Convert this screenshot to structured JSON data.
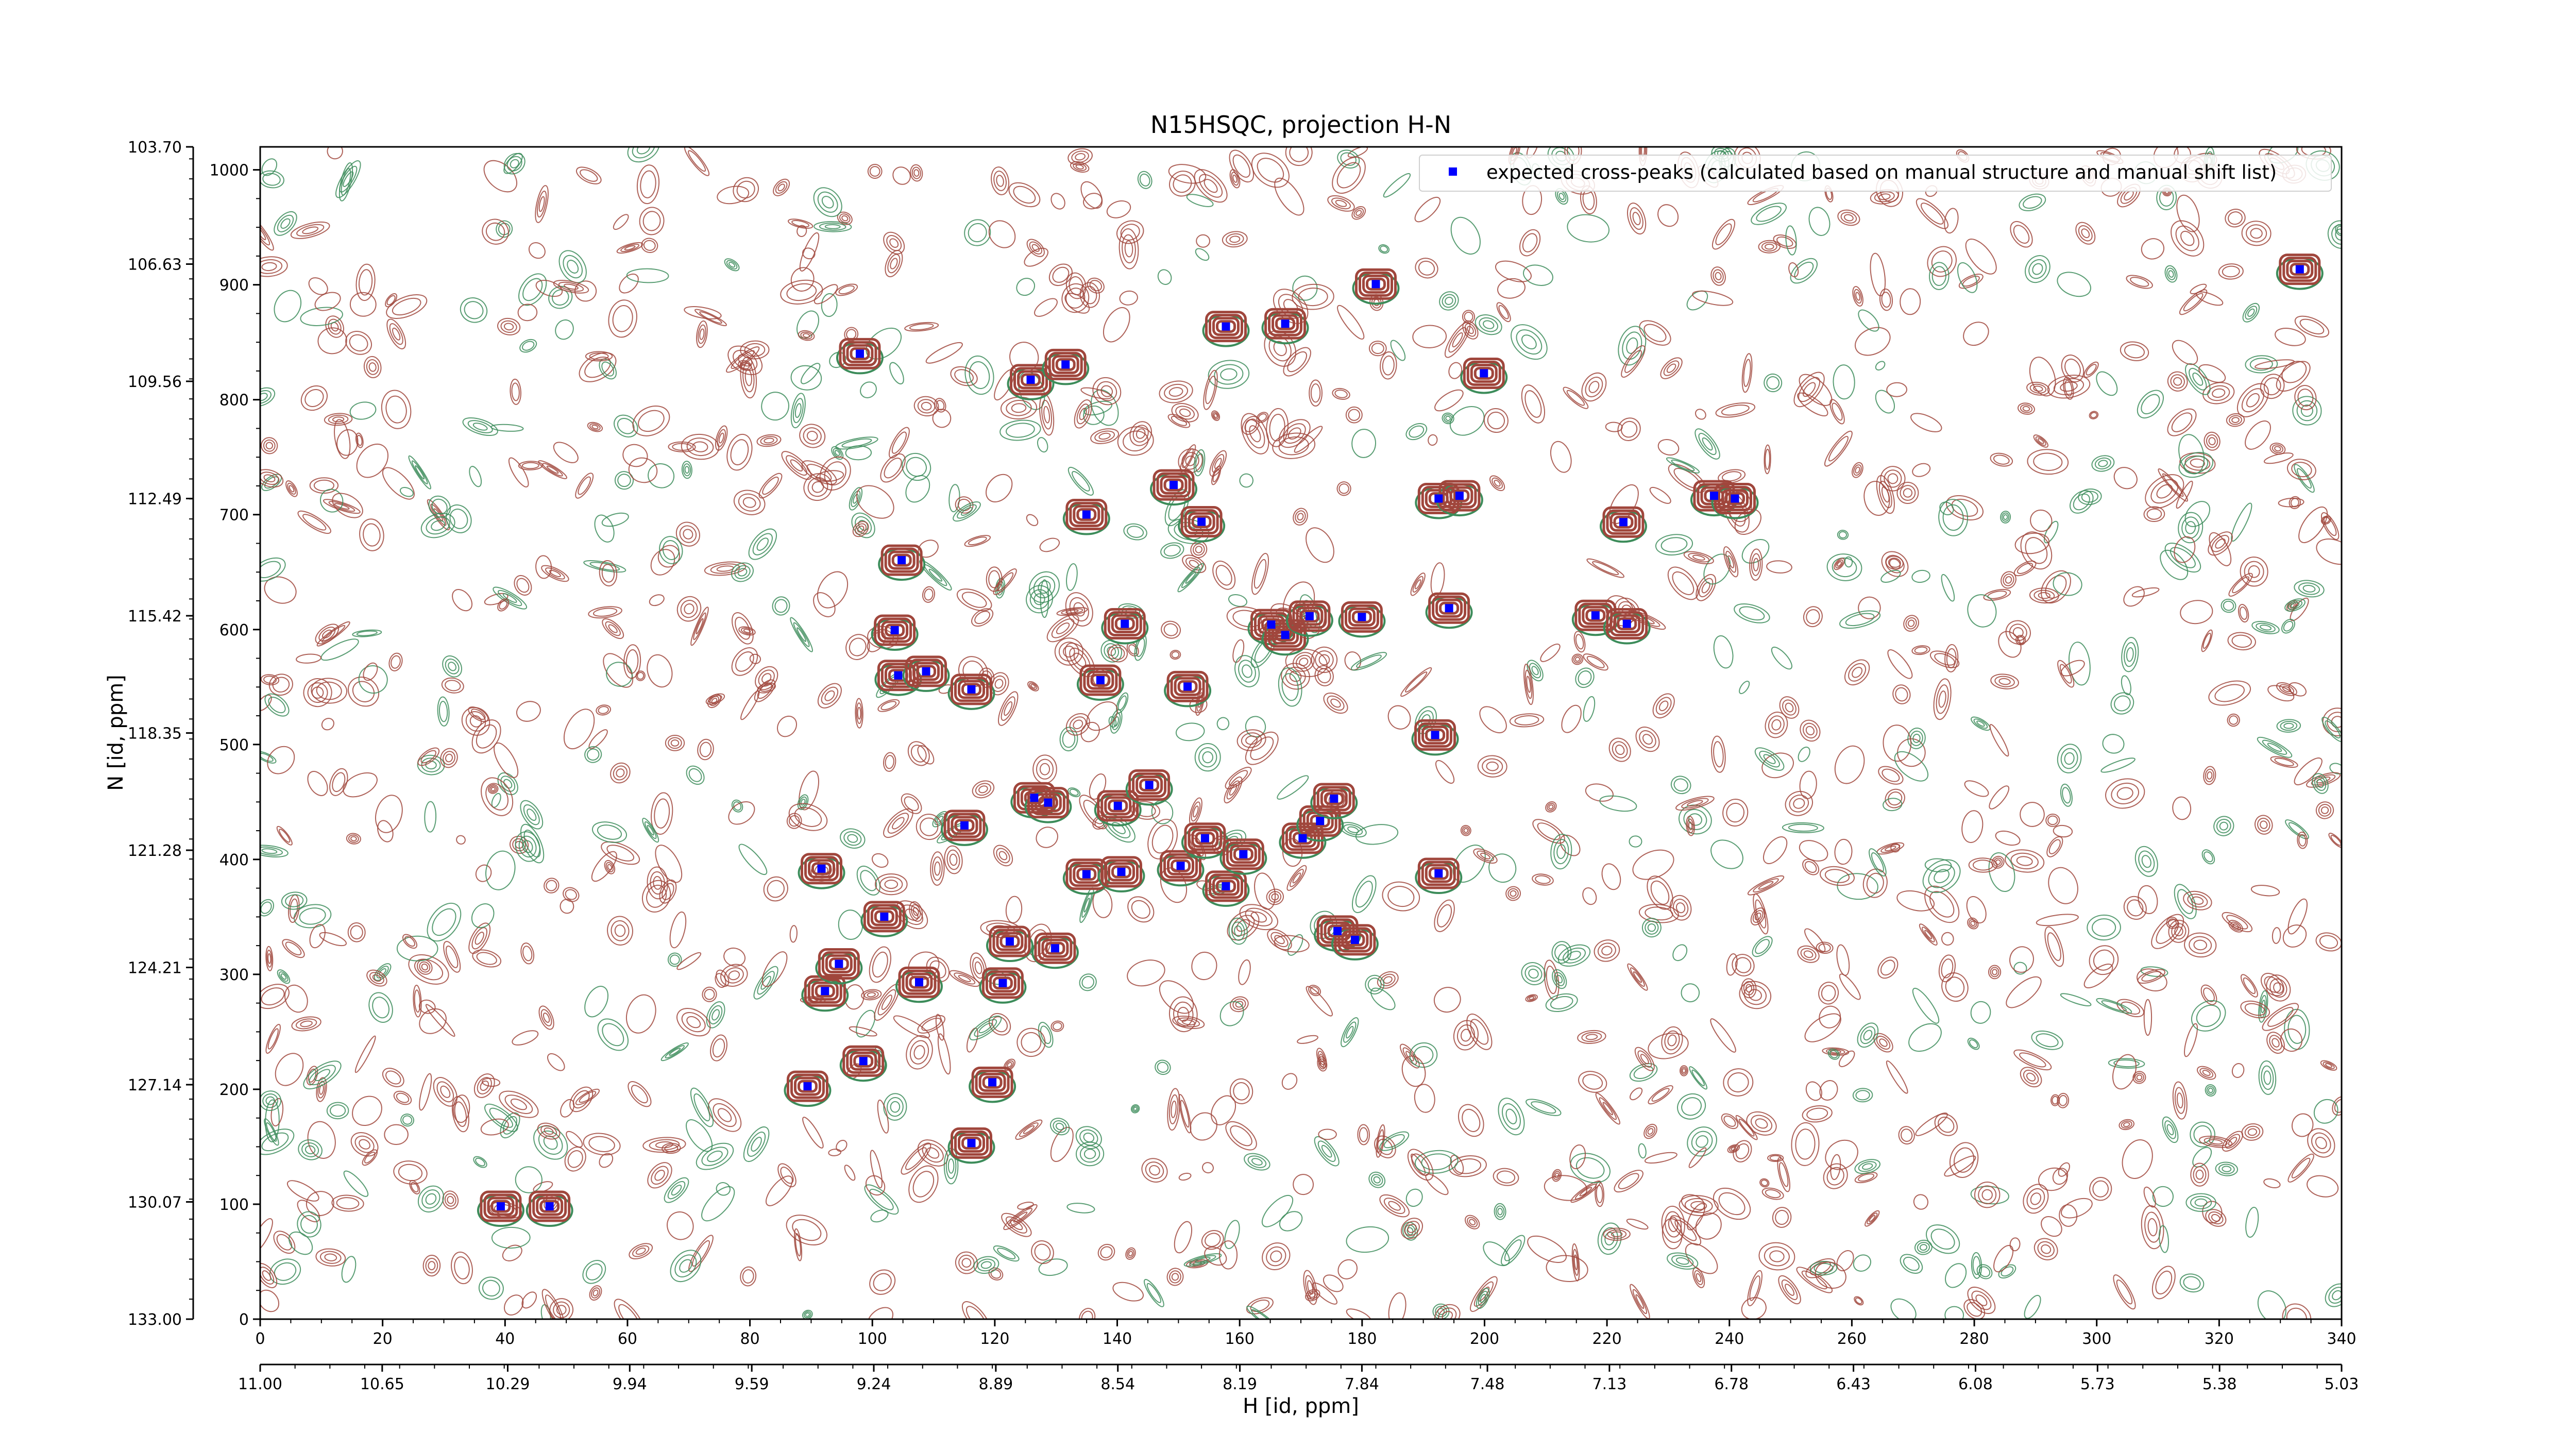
{
  "chart_data": {
    "type": "scatter",
    "title": "N15HSQC, projection H-N",
    "xlabel": "H [id, ppm]",
    "ylabel": "N [id, ppm]",
    "x_index_ticks": [
      "0",
      "20",
      "40",
      "60",
      "80",
      "100",
      "120",
      "140",
      "160",
      "180",
      "200",
      "220",
      "240",
      "260",
      "280",
      "300",
      "320",
      "340"
    ],
    "x_ppm_ticks": [
      "11.00",
      "10.65",
      "10.29",
      "9.94",
      "9.59",
      "9.24",
      "8.89",
      "8.54",
      "8.19",
      "7.84",
      "7.48",
      "7.13",
      "6.78",
      "6.43",
      "6.08",
      "5.73",
      "5.38",
      "5.03"
    ],
    "y_index_ticks": [
      "0",
      "100",
      "200",
      "300",
      "400",
      "500",
      "600",
      "700",
      "800",
      "900",
      "1000"
    ],
    "y_ppm_ticks": [
      "133.00",
      "130.07",
      "127.14",
      "124.21",
      "121.28",
      "118.35",
      "115.42",
      "112.49",
      "109.56",
      "106.63",
      "103.70"
    ],
    "x_index_range": [
      0,
      340
    ],
    "y_index_range": [
      0,
      1020
    ],
    "x_ppm_range": [
      11.0,
      5.03
    ],
    "y_ppm_range": [
      133.0,
      103.7
    ],
    "grid": false,
    "legend": {
      "position": "top-right",
      "entries": [
        {
          "label": "expected cross-peaks (calculated based on manual structure and manual shift list)",
          "marker": "square",
          "color": "#0000ff"
        }
      ]
    },
    "contour_colors": {
      "positive": "#a0463c",
      "negative": "#3c8c5a"
    },
    "series": [
      {
        "name": "expected cross-peaks (calculated based on manual structure and manual shift list)",
        "color": "#0000ff",
        "points": [
          {
            "x": 10.31,
            "y": 130.18
          },
          {
            "x": 10.17,
            "y": 130.18
          },
          {
            "x": 9.43,
            "y": 127.18
          },
          {
            "x": 9.27,
            "y": 126.55
          },
          {
            "x": 8.96,
            "y": 128.6
          },
          {
            "x": 8.9,
            "y": 127.08
          },
          {
            "x": 9.38,
            "y": 124.8
          },
          {
            "x": 9.34,
            "y": 124.12
          },
          {
            "x": 9.21,
            "y": 122.94
          },
          {
            "x": 9.11,
            "y": 124.58
          },
          {
            "x": 8.87,
            "y": 124.6
          },
          {
            "x": 8.85,
            "y": 123.56
          },
          {
            "x": 8.72,
            "y": 123.73
          },
          {
            "x": 9.39,
            "y": 121.74
          },
          {
            "x": 8.98,
            "y": 120.66
          },
          {
            "x": 8.78,
            "y": 119.97
          },
          {
            "x": 8.74,
            "y": 120.09
          },
          {
            "x": 8.54,
            "y": 120.17
          },
          {
            "x": 8.63,
            "y": 121.88
          },
          {
            "x": 8.53,
            "y": 121.82
          },
          {
            "x": 8.45,
            "y": 119.65
          },
          {
            "x": 8.36,
            "y": 121.67
          },
          {
            "x": 8.29,
            "y": 120.98
          },
          {
            "x": 8.23,
            "y": 122.18
          },
          {
            "x": 8.18,
            "y": 121.38
          },
          {
            "x": 8.01,
            "y": 120.98
          },
          {
            "x": 7.96,
            "y": 120.55
          },
          {
            "x": 7.92,
            "y": 119.99
          },
          {
            "x": 7.91,
            "y": 123.3
          },
          {
            "x": 7.86,
            "y": 123.52
          },
          {
            "x": 7.62,
            "y": 121.86
          },
          {
            "x": 7.63,
            "y": 118.4
          },
          {
            "x": 9.17,
            "y": 116.91
          },
          {
            "x": 9.09,
            "y": 116.81
          },
          {
            "x": 9.18,
            "y": 115.78
          },
          {
            "x": 8.96,
            "y": 117.26
          },
          {
            "x": 8.59,
            "y": 117.03
          },
          {
            "x": 8.34,
            "y": 117.19
          },
          {
            "x": 8.52,
            "y": 115.62
          },
          {
            "x": 8.1,
            "y": 115.64
          },
          {
            "x": 8.06,
            "y": 115.9
          },
          {
            "x": 7.99,
            "y": 115.43
          },
          {
            "x": 7.84,
            "y": 115.45
          },
          {
            "x": 7.59,
            "y": 115.23
          },
          {
            "x": 7.17,
            "y": 115.41
          },
          {
            "x": 7.08,
            "y": 115.62
          },
          {
            "x": 9.16,
            "y": 114.03
          },
          {
            "x": 8.63,
            "y": 112.89
          },
          {
            "x": 8.38,
            "y": 112.15
          },
          {
            "x": 8.3,
            "y": 113.07
          },
          {
            "x": 7.62,
            "y": 112.49
          },
          {
            "x": 7.56,
            "y": 112.42
          },
          {
            "x": 7.09,
            "y": 113.08
          },
          {
            "x": 6.83,
            "y": 112.42
          },
          {
            "x": 6.77,
            "y": 112.49
          },
          {
            "x": 9.28,
            "y": 108.87
          },
          {
            "x": 8.79,
            "y": 109.52
          },
          {
            "x": 8.69,
            "y": 109.14
          },
          {
            "x": 8.23,
            "y": 108.19
          },
          {
            "x": 8.06,
            "y": 108.12
          },
          {
            "x": 7.8,
            "y": 107.13
          },
          {
            "x": 7.49,
            "y": 109.36
          },
          {
            "x": 5.15,
            "y": 106.76
          }
        ]
      }
    ]
  }
}
